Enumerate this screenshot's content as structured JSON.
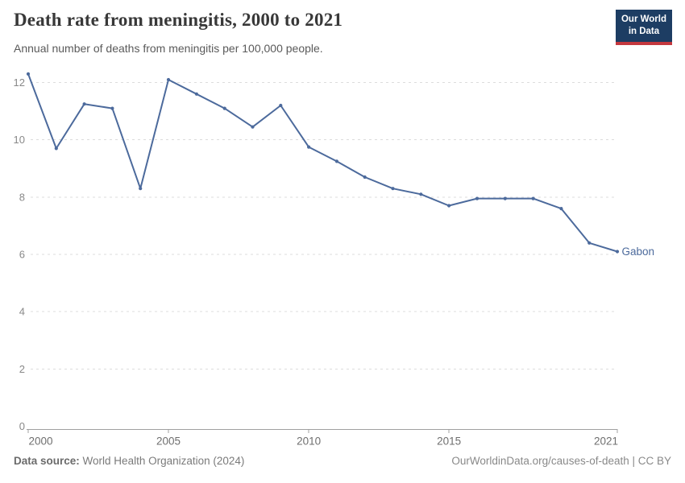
{
  "header": {
    "title": "Death rate from meningitis, 2000 to 2021",
    "subtitle": "Annual number of deaths from meningitis per 100,000 people.",
    "logo": {
      "line1": "Our World",
      "line2": "in Data"
    }
  },
  "chart_data": {
    "type": "line",
    "title": "Death rate from meningitis, 2000 to 2021",
    "subtitle": "Annual number of deaths from meningitis per 100,000 people.",
    "xlabel": "",
    "ylabel": "",
    "xlim": [
      2000,
      2021
    ],
    "ylim": [
      0,
      12.4
    ],
    "grid": "horizontal-dashed",
    "legend_position": "line-end-label",
    "xticks": [
      2000,
      2005,
      2010,
      2015,
      2021
    ],
    "yticks": [
      0,
      2,
      4,
      6,
      8,
      10,
      12
    ],
    "series": [
      {
        "name": "Gabon",
        "color": "#4c6a9c",
        "x": [
          2000,
          2001,
          2002,
          2003,
          2004,
          2005,
          2006,
          2007,
          2008,
          2009,
          2010,
          2011,
          2012,
          2013,
          2014,
          2015,
          2016,
          2017,
          2018,
          2019,
          2020,
          2021
        ],
        "values": [
          12.3,
          9.7,
          11.25,
          11.1,
          8.3,
          12.1,
          11.6,
          11.1,
          10.45,
          11.2,
          9.75,
          9.25,
          8.7,
          8.3,
          8.1,
          7.7,
          7.95,
          7.95,
          7.95,
          7.6,
          6.4,
          6.1
        ]
      }
    ]
  },
  "footer": {
    "source_label": "Data source:",
    "source_text": "World Health Organization (2024)",
    "credit": "OurWorldinData.org/causes-of-death | CC BY"
  },
  "colors": {
    "line": "#4c6a9c",
    "grid": "#dcdcdc",
    "axis": "#a0a0a0",
    "title": "#383838",
    "subtitle": "#5a5a5a",
    "footer": "#7a7a7a",
    "logo_bg": "#1d3d63",
    "logo_accent": "#c4383f"
  }
}
